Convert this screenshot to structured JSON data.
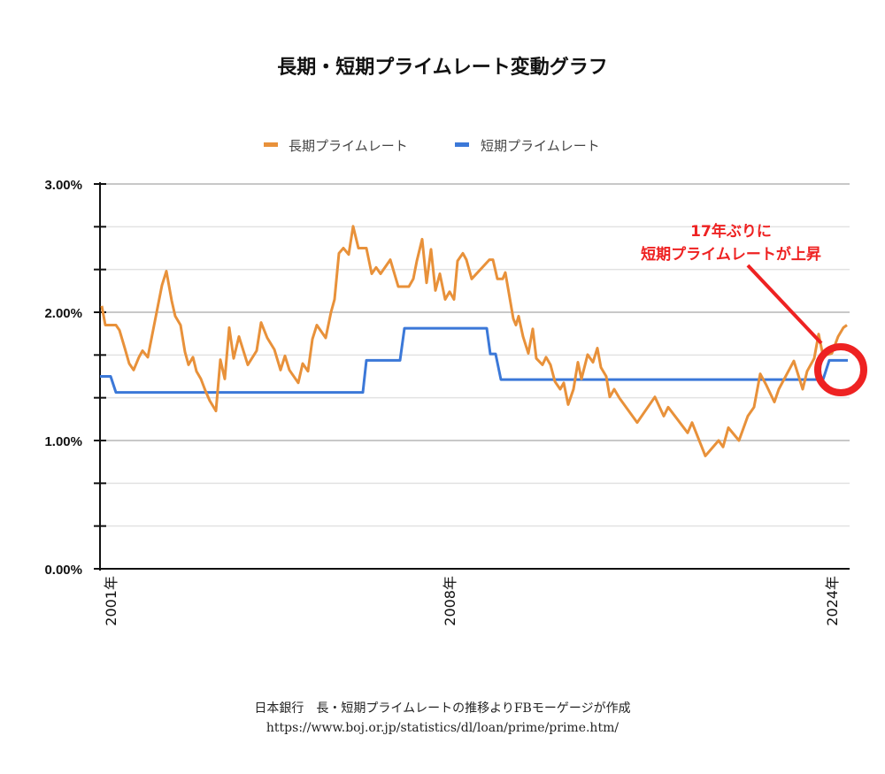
{
  "title": "長期・短期プライムレート変動グラフ",
  "footer": {
    "line1": "日本銀行　長・短期プライムレートの推移よりFBモーゲージが作成",
    "line2": "https://www.boj.or.jp/statistics/dl/loan/prime/prime.htm/"
  },
  "chart_data": {
    "type": "line",
    "title": "長期・短期プライムレート変動グラフ",
    "ylim": [
      0,
      3
    ],
    "y_tick_labels": [
      "0.00%",
      "1.00%",
      "2.00%",
      "3.00%"
    ],
    "y_ticks": [
      0,
      1,
      2,
      3
    ],
    "x_tick_labels": [
      "2001年",
      "2008年",
      "2024年"
    ],
    "grid": true,
    "legend_position": "top",
    "series": [
      {
        "name": "長期プライムレート",
        "color": "#e8913a",
        "values": [
          2.05,
          1.9,
          1.9,
          1.86,
          1.72,
          1.6,
          1.55,
          1.65,
          1.7,
          1.65,
          2.0,
          2.21,
          2.32,
          2.09,
          1.97,
          1.9,
          1.69,
          1.59,
          1.65,
          1.54,
          1.48,
          1.39,
          1.31,
          1.23,
          1.63,
          1.48,
          1.88,
          1.64,
          1.81,
          1.59,
          1.7,
          1.92,
          1.8,
          1.71,
          1.55,
          1.66,
          1.55,
          1.45,
          1.6,
          1.54,
          1.79,
          1.9,
          1.8,
          2.0,
          2.1,
          2.46,
          2.5,
          2.45,
          2.67,
          2.5,
          2.5,
          2.3,
          2.35,
          2.3,
          2.41,
          2.2,
          2.2,
          2.26,
          2.4,
          2.57,
          2.23,
          2.49,
          2.17,
          2.3,
          2.1,
          2.16,
          2.1,
          2.4,
          2.46,
          2.41,
          2.26,
          2.41,
          2.41,
          2.26,
          2.26,
          2.31,
          1.95,
          1.9,
          1.97,
          1.81,
          1.68,
          1.87,
          1.64,
          1.59,
          1.65,
          1.59,
          1.46,
          1.4,
          1.45,
          1.28,
          1.4,
          1.61,
          1.48,
          1.67,
          1.61,
          1.72,
          1.57,
          1.5,
          1.34,
          1.4,
          1.33,
          1.14,
          1.34,
          1.19,
          1.26,
          1.06,
          1.14,
          0.88,
          1.0,
          0.95,
          1.1,
          1.0,
          1.19,
          1.26,
          1.52,
          1.43,
          1.3,
          1.4,
          1.62,
          1.4,
          1.54,
          1.64,
          1.83,
          1.66,
          1.68,
          1.81,
          1.88,
          1.9
        ]
      },
      {
        "name": "短期プライムレート",
        "color": "#3b78d8",
        "values": [
          1.5,
          1.375,
          1.625,
          1.875,
          1.675,
          1.475,
          1.625
        ]
      }
    ],
    "annotation": {
      "line1": "17年ぶりに",
      "line2": "短期プライムレートが上昇",
      "color": "#ee2222"
    }
  }
}
